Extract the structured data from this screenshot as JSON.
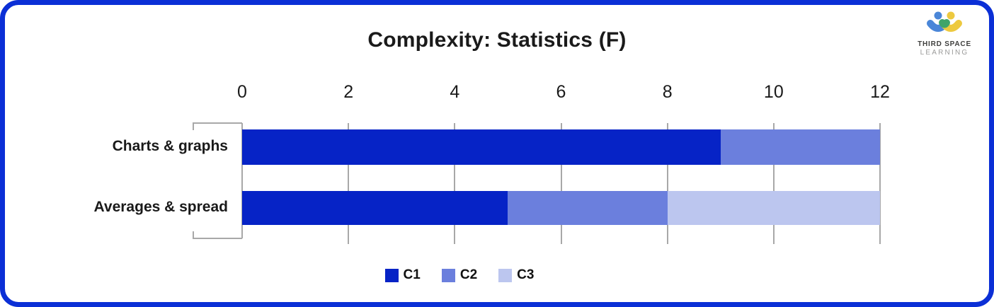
{
  "card": {
    "border_color": "#0B2FD6",
    "background": "#FFFFFF"
  },
  "logo": {
    "line1": "THIRD SPACE",
    "line2": "LEARNING",
    "colors": {
      "person_left": "#4A86D8",
      "person_right": "#EDC93F",
      "overlap": "#3FA469",
      "text_primary": "#3F3F3E",
      "text_secondary": "#9B9B9A"
    }
  },
  "chart_data": {
    "type": "bar",
    "orientation": "horizontal",
    "stacked": true,
    "title": "Complexity: Statistics (F)",
    "categories": [
      "Charts & graphs",
      "Averages & spread"
    ],
    "series": [
      {
        "name": "C1",
        "color": "#0623C6",
        "values": [
          9,
          5
        ]
      },
      {
        "name": "C2",
        "color": "#6B7FDD",
        "values": [
          3,
          3
        ]
      },
      {
        "name": "C3",
        "color": "#BCC6EF",
        "values": [
          0,
          4
        ]
      }
    ],
    "totals": [
      12,
      12
    ],
    "xlim": [
      0,
      12
    ],
    "x_ticks": [
      0,
      2,
      4,
      6,
      8,
      10,
      12
    ],
    "grid": true,
    "gridline_color": "#A8A8A8",
    "axis_color": "#A8A8A8",
    "legend_position": "bottom"
  }
}
